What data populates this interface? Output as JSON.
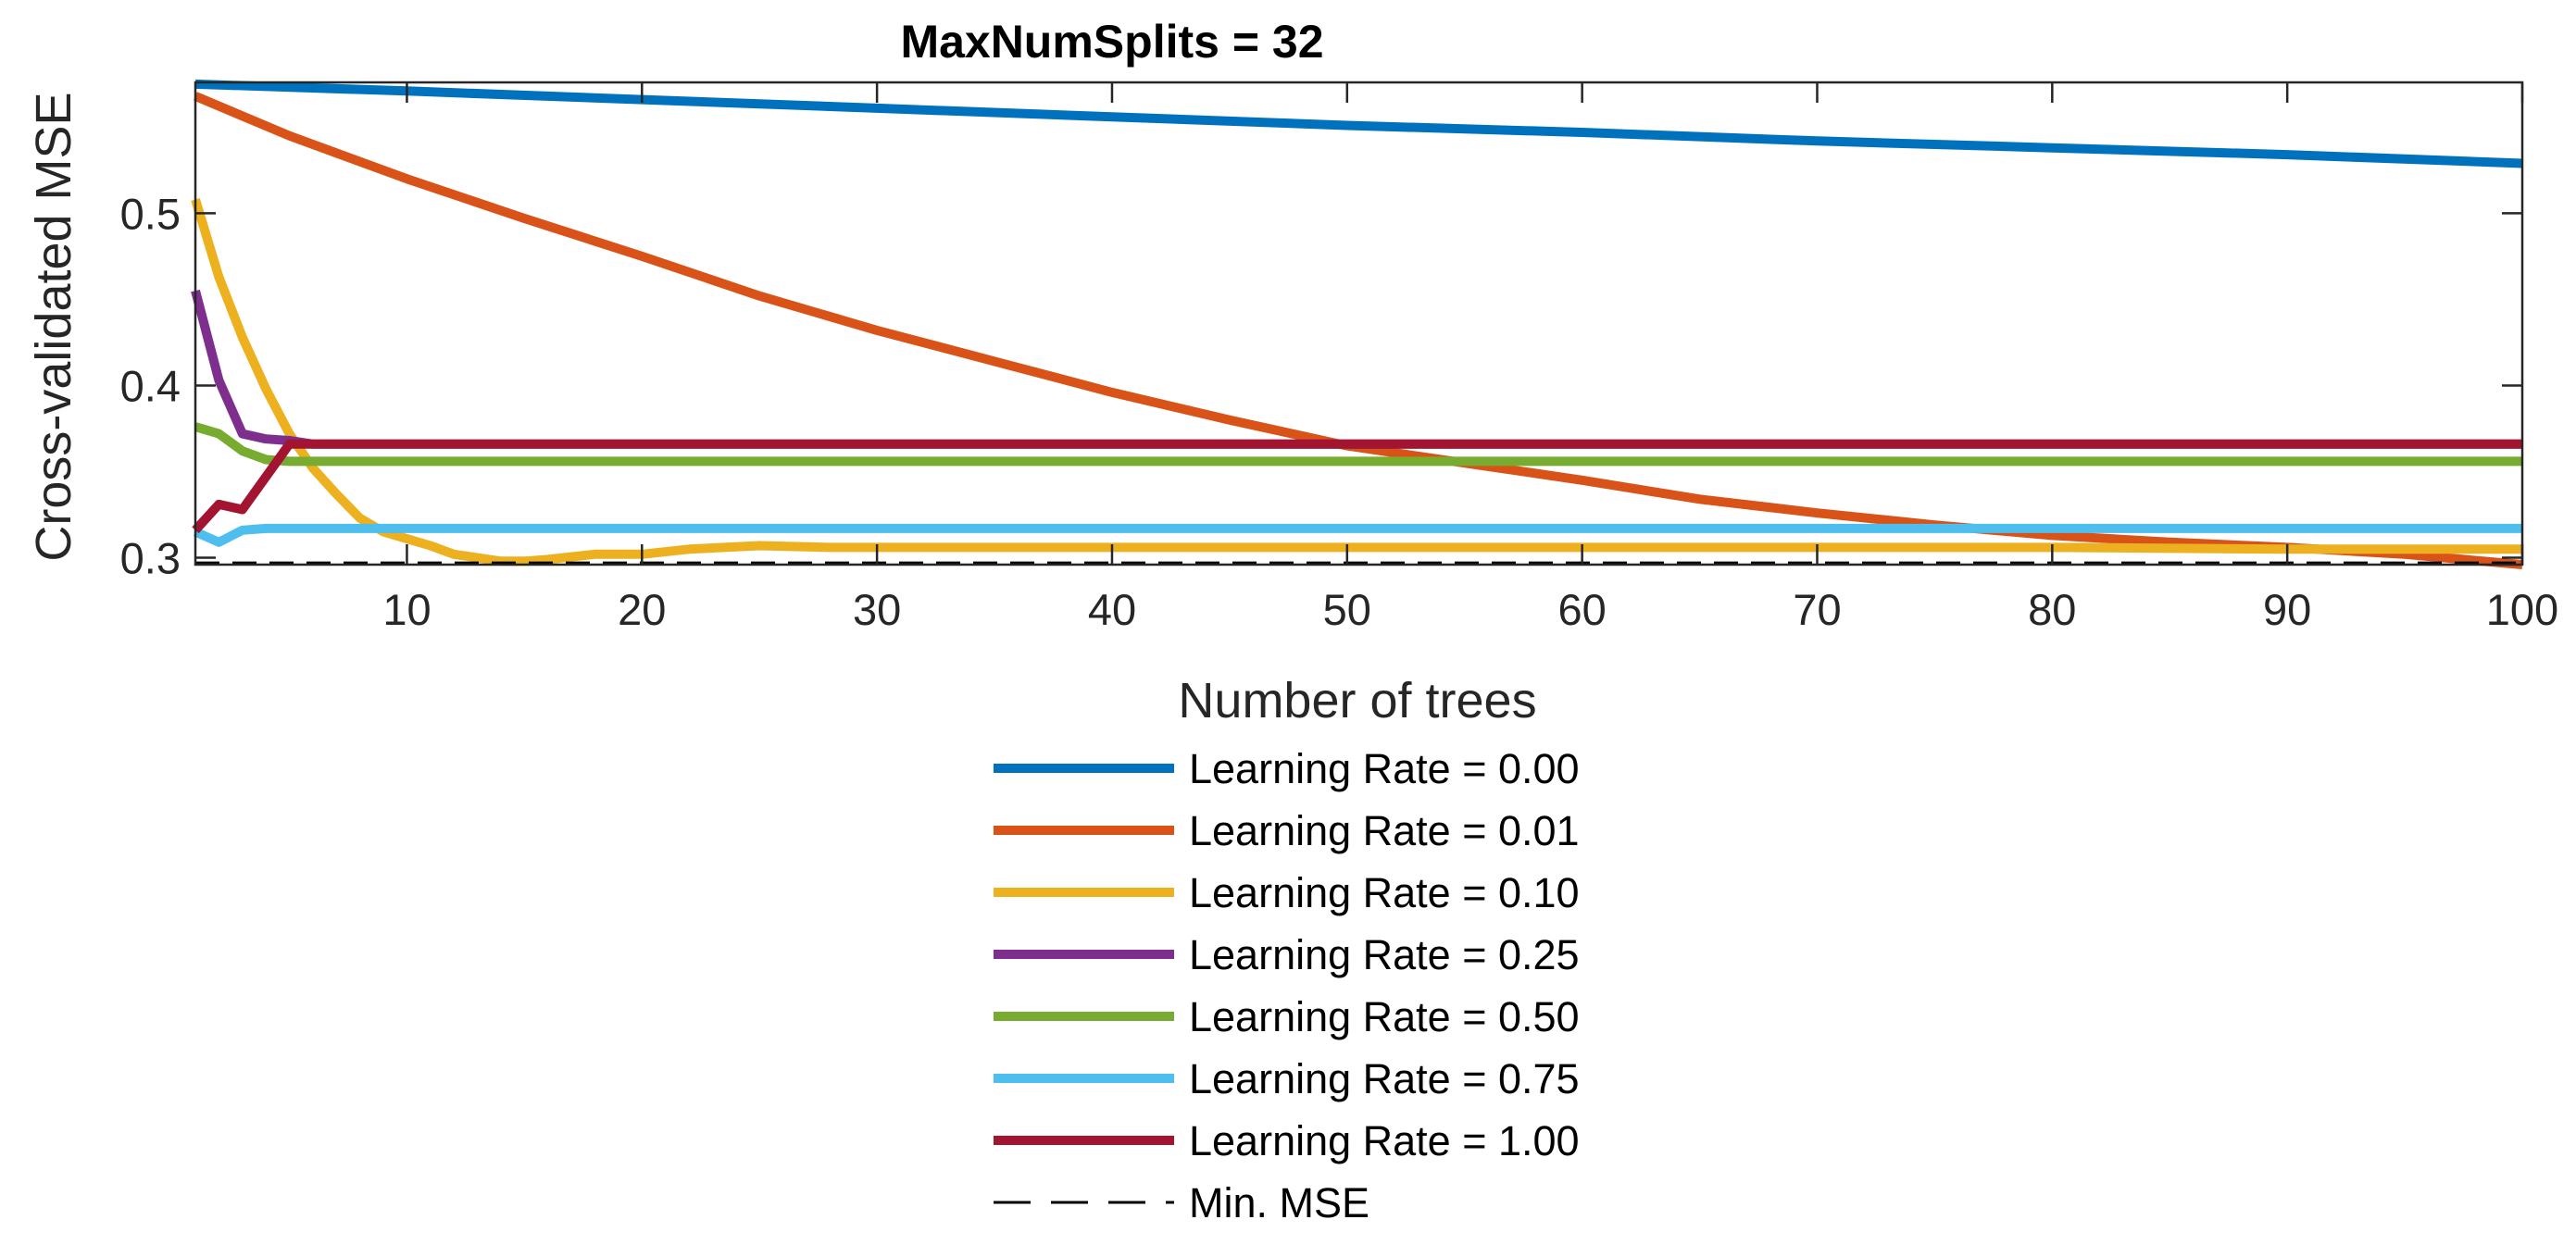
{
  "chart_data": {
    "type": "line",
    "title": "MaxNumSplits = 32",
    "xlabel": "Number of trees",
    "ylabel": "Cross-validated MSE",
    "xlim": [
      1,
      100
    ],
    "ylim": [
      0.296,
      0.576
    ],
    "xticks": [
      10,
      20,
      30,
      40,
      50,
      60,
      70,
      80,
      90,
      100
    ],
    "xtick_labels": [
      "10",
      "20",
      "30",
      "40",
      "50",
      "60",
      "70",
      "80",
      "90",
      "100"
    ],
    "yticks": [
      0.3,
      0.4,
      0.5
    ],
    "ytick_labels": [
      "0.3",
      "0.4",
      "0.5"
    ],
    "grid": false,
    "legend_position": "below",
    "series": [
      {
        "name": "Learning Rate = 0.00",
        "color": "#0072BD",
        "x": [
          1,
          10,
          20,
          30,
          40,
          50,
          60,
          70,
          80,
          90,
          100
        ],
        "y": [
          0.575,
          0.571,
          0.566,
          0.561,
          0.556,
          0.551,
          0.547,
          0.542,
          0.538,
          0.534,
          0.529
        ]
      },
      {
        "name": "Learning Rate = 0.01",
        "color": "#D95319",
        "x": [
          1,
          5,
          10,
          15,
          20,
          25,
          30,
          35,
          40,
          45,
          50,
          55,
          60,
          65,
          70,
          75,
          80,
          85,
          90,
          95,
          100
        ],
        "y": [
          0.568,
          0.545,
          0.52,
          0.497,
          0.475,
          0.452,
          0.432,
          0.414,
          0.396,
          0.38,
          0.365,
          0.355,
          0.345,
          0.334,
          0.326,
          0.319,
          0.313,
          0.309,
          0.306,
          0.302,
          0.296
        ]
      },
      {
        "name": "Learning Rate = 0.10",
        "color": "#EDB120",
        "x": [
          1,
          2,
          3,
          4,
          5,
          6,
          7,
          8,
          9,
          10,
          11,
          12,
          13,
          14,
          15,
          16,
          18,
          20,
          22,
          25,
          28,
          30,
          40,
          50,
          60,
          70,
          80,
          90,
          100
        ],
        "y": [
          0.508,
          0.463,
          0.428,
          0.398,
          0.372,
          0.352,
          0.337,
          0.323,
          0.315,
          0.311,
          0.307,
          0.302,
          0.3,
          0.298,
          0.298,
          0.299,
          0.302,
          0.302,
          0.305,
          0.307,
          0.306,
          0.306,
          0.306,
          0.306,
          0.306,
          0.306,
          0.306,
          0.305,
          0.305
        ]
      },
      {
        "name": "Learning Rate = 0.25",
        "color": "#7E2F8E",
        "x": [
          1,
          2,
          3,
          4,
          5,
          6,
          7,
          8,
          9,
          10,
          100
        ],
        "y": [
          0.455,
          0.403,
          0.372,
          0.369,
          0.368,
          0.366,
          0.366,
          0.366,
          0.366,
          0.366,
          0.366
        ]
      },
      {
        "name": "Learning Rate = 0.50",
        "color": "#77AC30",
        "x": [
          1,
          2,
          3,
          4,
          5,
          6,
          100
        ],
        "y": [
          0.376,
          0.372,
          0.362,
          0.357,
          0.356,
          0.356,
          0.356
        ]
      },
      {
        "name": "Learning Rate = 0.75",
        "color": "#4DBEEE",
        "x": [
          1,
          2,
          3,
          4,
          5,
          100
        ],
        "y": [
          0.315,
          0.309,
          0.316,
          0.317,
          0.317,
          0.317
        ]
      },
      {
        "name": "Learning Rate = 1.00",
        "color": "#A2142F",
        "x": [
          1,
          2,
          3,
          4,
          5,
          6,
          100
        ],
        "y": [
          0.316,
          0.331,
          0.328,
          0.347,
          0.366,
          0.366,
          0.366
        ]
      }
    ],
    "min_mse": {
      "name": "Min. MSE",
      "color": "#000000",
      "value": 0.297
    }
  }
}
